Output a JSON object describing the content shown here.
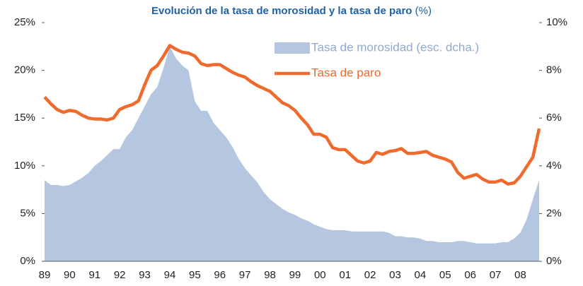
{
  "chart_data": {
    "type": "area-line",
    "title": "Evolución de la tasa de morosidad y la tasa de paro",
    "subtitle": "(%)",
    "categories": [
      "89",
      null,
      null,
      null,
      "90",
      null,
      null,
      null,
      "91",
      null,
      null,
      null,
      "92",
      null,
      null,
      null,
      "93",
      null,
      null,
      null,
      "94",
      null,
      null,
      null,
      "95",
      null,
      null,
      null,
      "96",
      null,
      null,
      null,
      "97",
      null,
      null,
      null,
      "98",
      null,
      null,
      null,
      "99",
      null,
      null,
      null,
      "00",
      null,
      null,
      null,
      "01",
      null,
      null,
      null,
      "02",
      null,
      null,
      null,
      "03",
      null,
      null,
      null,
      "04",
      null,
      null,
      null,
      "05",
      null,
      null,
      null,
      "06",
      null,
      null,
      null,
      "07",
      null,
      null,
      null,
      "08",
      null,
      null,
      null
    ],
    "series": [
      {
        "name": "Tasa de morosidad (esc. dcha.)",
        "kind": "area",
        "axis": "y2",
        "color": "#b4c6e0",
        "label_color": "#8eaad2",
        "values": [
          3.4,
          3.2,
          3.2,
          3.15,
          3.2,
          3.35,
          3.5,
          3.7,
          4.0,
          4.2,
          4.45,
          4.7,
          4.7,
          5.2,
          5.5,
          6.0,
          6.5,
          7.0,
          7.3,
          8.1,
          9.0,
          8.5,
          8.2,
          8.0,
          6.7,
          6.3,
          6.3,
          5.8,
          5.5,
          5.2,
          4.8,
          4.3,
          3.9,
          3.6,
          3.3,
          2.9,
          2.6,
          2.4,
          2.2,
          2.05,
          1.95,
          1.8,
          1.7,
          1.55,
          1.45,
          1.35,
          1.3,
          1.3,
          1.3,
          1.25,
          1.25,
          1.25,
          1.25,
          1.25,
          1.25,
          1.2,
          1.05,
          1.05,
          1.0,
          1.0,
          0.95,
          0.85,
          0.85,
          0.8,
          0.8,
          0.8,
          0.85,
          0.85,
          0.8,
          0.75,
          0.75,
          0.75,
          0.75,
          0.8,
          0.8,
          0.95,
          1.2,
          1.75,
          2.6,
          3.4
        ]
      },
      {
        "name": "Tasa de paro",
        "kind": "line",
        "axis": "y",
        "color": "#ef6a2c",
        "label_color": "#ef6a2c",
        "values": [
          17.2,
          16.5,
          15.9,
          15.6,
          15.8,
          15.7,
          15.3,
          15.0,
          14.9,
          14.9,
          14.8,
          15.0,
          15.9,
          16.2,
          16.4,
          16.8,
          18.5,
          20.0,
          20.5,
          21.5,
          22.6,
          22.2,
          21.9,
          21.8,
          21.5,
          20.7,
          20.5,
          20.6,
          20.6,
          20.2,
          19.8,
          19.5,
          19.3,
          18.8,
          18.4,
          18.1,
          17.8,
          17.2,
          16.6,
          16.3,
          15.8,
          15.0,
          14.3,
          13.3,
          13.3,
          13.0,
          11.9,
          11.7,
          11.7,
          11.1,
          10.5,
          10.3,
          10.5,
          11.4,
          11.2,
          11.5,
          11.6,
          11.8,
          11.3,
          11.3,
          11.4,
          11.5,
          11.1,
          10.9,
          10.7,
          10.4,
          9.3,
          8.7,
          8.9,
          9.1,
          8.6,
          8.3,
          8.3,
          8.5,
          8.1,
          8.2,
          8.9,
          9.9,
          10.9,
          13.9
        ]
      }
    ],
    "ylim": [
      0,
      25
    ],
    "yticks": [
      {
        "value": 0,
        "label": "0%"
      },
      {
        "value": 5,
        "label": "5%"
      },
      {
        "value": 10,
        "label": "10%"
      },
      {
        "value": 15,
        "label": "15%"
      },
      {
        "value": 20,
        "label": "20%"
      },
      {
        "value": 25,
        "label": "25%"
      }
    ],
    "y2lim": [
      0,
      10
    ],
    "y2ticks": [
      {
        "value": 0,
        "label": "0%"
      },
      {
        "value": 2,
        "label": "2%"
      },
      {
        "value": 4,
        "label": "4%"
      },
      {
        "value": 6,
        "label": "6%"
      },
      {
        "value": 8,
        "label": "8%"
      },
      {
        "value": 10,
        "label": "10%"
      }
    ],
    "legend": "upper right",
    "title_color": "#1f62a6"
  }
}
